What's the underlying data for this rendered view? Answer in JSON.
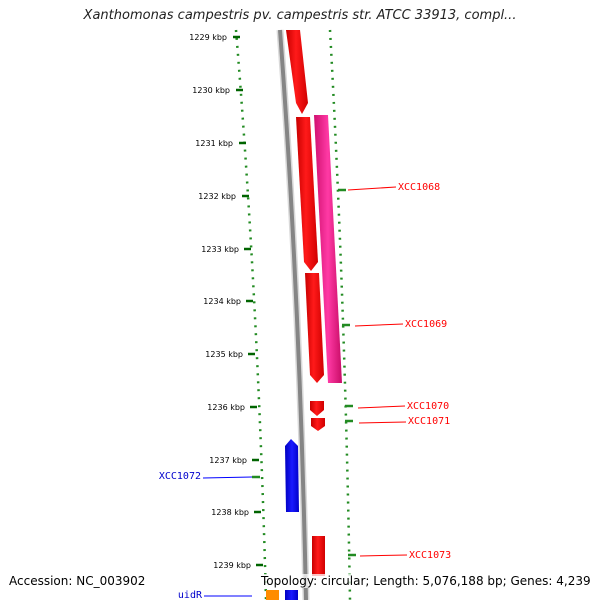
{
  "title": "Xanthomonas campestris pv. campestris str. ATCC 33913, compl...",
  "footer": {
    "accession": "Accession: NC_003902",
    "summary": "Topology: circular; Length: 5,076,188 bp; Genes: 4,239"
  },
  "ruler": {
    "labels": [
      "1229 kbp",
      "1230 kbp",
      "1231 kbp",
      "1232 kbp",
      "1233 kbp",
      "1234 kbp",
      "1235 kbp",
      "1236 kbp",
      "1237 kbp",
      "1238 kbp",
      "1239 kbp"
    ]
  },
  "genes": [
    {
      "name": "XCC1068",
      "color": "#ff0000"
    },
    {
      "name": "XCC1069",
      "color": "#ff0000"
    },
    {
      "name": "XCC1070",
      "color": "#ff0000"
    },
    {
      "name": "XCC1071",
      "color": "#ff0000"
    },
    {
      "name": "XCC1072",
      "color": "#0000ff"
    },
    {
      "name": "XCC1073",
      "color": "#ff0000"
    },
    {
      "name": "uidR",
      "color": "#0000ff"
    }
  ],
  "colors": {
    "forward_cds": "#ff0000",
    "reverse_cds": "#0000ff",
    "magenta_feature": "#ff1493",
    "orange_feature": "#ff8c00",
    "backbone": "#888888",
    "dots": "#228b22"
  }
}
